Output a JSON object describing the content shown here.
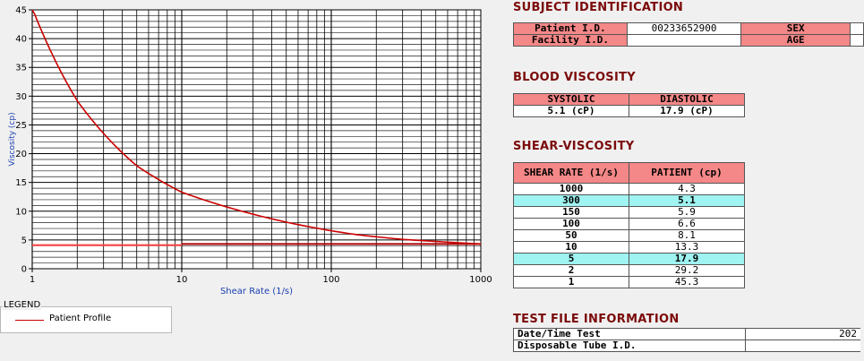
{
  "chart_data": {
    "type": "line",
    "xlabel": "Shear Rate (1/s)",
    "ylabel": "Viscosity (cp)",
    "x_scale": "log",
    "xlim": [
      1,
      1000
    ],
    "ylim": [
      0,
      45
    ],
    "x_ticks": [
      "1",
      "10",
      "100",
      "1000"
    ],
    "y_ticks": [
      "0",
      "5",
      "10",
      "15",
      "20",
      "25",
      "30",
      "35",
      "40",
      "45"
    ],
    "grid": true,
    "series": [
      {
        "name": "Patient Profile",
        "color": "#cc0000",
        "x": [
          1,
          2,
          5,
          10,
          50,
          100,
          150,
          300,
          1000
        ],
        "y": [
          45.3,
          29.2,
          17.9,
          13.3,
          8.1,
          6.6,
          5.9,
          5.1,
          4.3
        ]
      }
    ],
    "reference_lines": [
      {
        "color": "#ff4040",
        "y": 4.1,
        "x_from": 1,
        "x_to": 10
      },
      {
        "color": "#aa0000",
        "y": 4.3,
        "x_from": 10,
        "x_to": 1000
      }
    ]
  },
  "legend": {
    "title": "LEGEND",
    "items": [
      {
        "label": "Patient Profile",
        "color": "#cc0000"
      }
    ]
  },
  "subject": {
    "title": "SUBJECT IDENTIFICATION",
    "patient_id_label": "Patient I.D.",
    "patient_id_value": "00233652900",
    "facility_id_label": "Facility I.D.",
    "facility_id_value": "",
    "sex_label": "SEX",
    "age_label": "AGE"
  },
  "blood": {
    "title": "BLOOD VISCOSITY",
    "systolic_label": "SYSTOLIC",
    "diastolic_label": "DIASTOLIC",
    "systolic_value": "5.1 (cP)",
    "diastolic_value": "17.9 (cP)"
  },
  "shear": {
    "title": "SHEAR-VISCOSITY",
    "col_rate": "SHEAR RATE (1/s)",
    "col_patient": "PATIENT (cp)",
    "rows": [
      {
        "rate": "1000",
        "patient": "4.3",
        "highlight": false
      },
      {
        "rate": "300",
        "patient": "5.1",
        "highlight": true
      },
      {
        "rate": "150",
        "patient": "5.9",
        "highlight": false
      },
      {
        "rate": "100",
        "patient": "6.6",
        "highlight": false
      },
      {
        "rate": "50",
        "patient": "8.1",
        "highlight": false
      },
      {
        "rate": "10",
        "patient": "13.3",
        "highlight": false
      },
      {
        "rate": "5",
        "patient": "17.9",
        "highlight": true
      },
      {
        "rate": "2",
        "patient": "29.2",
        "highlight": false
      },
      {
        "rate": "1",
        "patient": "45.3",
        "highlight": false
      }
    ]
  },
  "testfile": {
    "title": "TEST FILE INFORMATION",
    "datetime_label": "Date/Time Test",
    "datetime_value": "202",
    "tube_label": "Disposable Tube I.D.",
    "tube_value": ""
  }
}
